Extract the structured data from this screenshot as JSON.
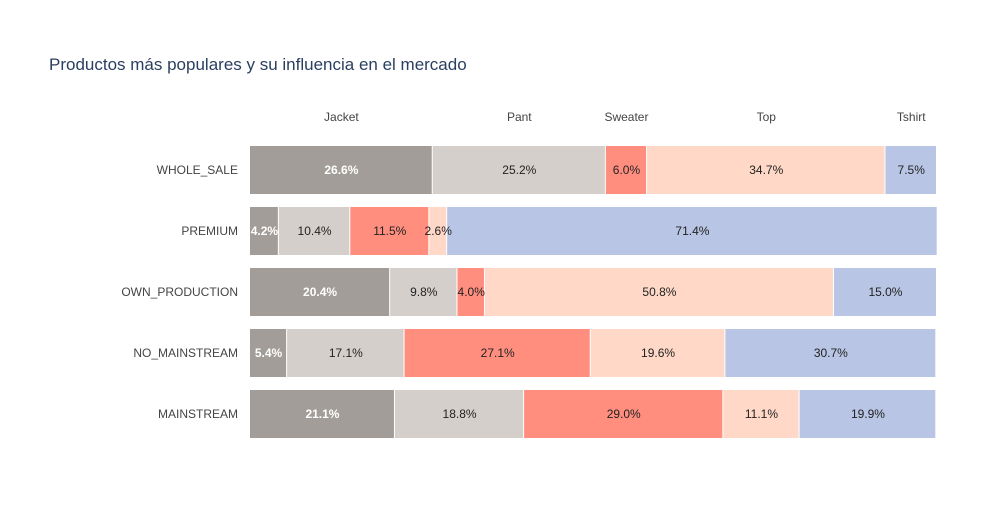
{
  "chart_data": {
    "type": "bar",
    "orientation": "horizontal",
    "barmode": "stack",
    "title": "Productos más populares y su influencia en el mercado",
    "xlabel": "",
    "ylabel": "",
    "legend": "none",
    "grid": false,
    "xlim": [
      0,
      100
    ],
    "categories": [
      "WHOLE_SALE",
      "PREMIUM",
      "OWN_PRODUCTION",
      "NO_MAINSTREAM",
      "MAINSTREAM"
    ],
    "series": [
      {
        "name": "Jacket",
        "color": "#a29d98",
        "label_color": "#ffffff",
        "values": [
          26.6,
          4.2,
          20.4,
          5.4,
          21.1
        ],
        "labels": [
          "26.6%",
          "4.2%",
          "20.4%",
          "5.4%",
          "21.1%"
        ]
      },
      {
        "name": "Pant",
        "color": "#d5cfcb",
        "label_color": "#222222",
        "values": [
          25.2,
          10.4,
          9.8,
          17.1,
          18.8
        ],
        "labels": [
          "25.2%",
          "10.4%",
          "9.8%",
          "17.1%",
          "18.8%"
        ]
      },
      {
        "name": "Sweater",
        "color": "#ff8e7f",
        "label_color": "#222222",
        "values": [
          6.0,
          11.5,
          4.0,
          27.1,
          29.0
        ],
        "labels": [
          "6.0%",
          "11.5%",
          "4.0%",
          "27.1%",
          "29.0%"
        ]
      },
      {
        "name": "Top",
        "color": "#ffd8c7",
        "label_color": "#222222",
        "values": [
          34.7,
          2.6,
          50.8,
          19.6,
          11.1
        ],
        "labels": [
          "34.7%",
          "2.6%",
          "50.8%",
          "19.6%",
          "11.1%"
        ]
      },
      {
        "name": "Tshirt",
        "color": "#b9c5e5",
        "label_color": "#222222",
        "values": [
          7.5,
          71.4,
          15.0,
          30.7,
          19.9
        ],
        "labels": [
          "7.5%",
          "71.4%",
          "15.0%",
          "30.7%",
          "19.9%"
        ]
      }
    ]
  }
}
